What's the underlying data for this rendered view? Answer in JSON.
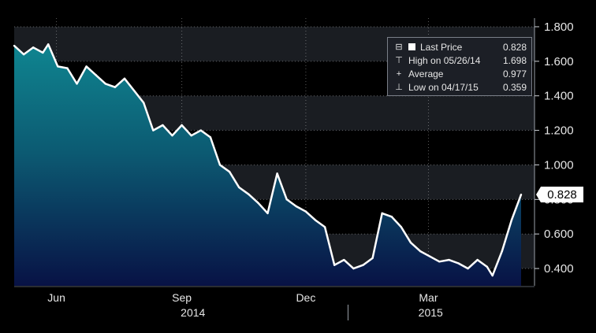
{
  "chart_data": {
    "type": "area",
    "x": [
      "2014-05-01",
      "2014-05-08",
      "2014-05-15",
      "2014-05-22",
      "2014-05-26",
      "2014-06-02",
      "2014-06-09",
      "2014-06-16",
      "2014-06-23",
      "2014-06-30",
      "2014-07-07",
      "2014-07-14",
      "2014-07-21",
      "2014-07-28",
      "2014-08-04",
      "2014-08-11",
      "2014-08-18",
      "2014-08-25",
      "2014-09-01",
      "2014-09-08",
      "2014-09-15",
      "2014-09-22",
      "2014-09-29",
      "2014-10-06",
      "2014-10-13",
      "2014-10-20",
      "2014-10-27",
      "2014-11-03",
      "2014-11-10",
      "2014-11-17",
      "2014-11-24",
      "2014-12-01",
      "2014-12-08",
      "2014-12-15",
      "2014-12-22",
      "2014-12-29",
      "2015-01-05",
      "2015-01-12",
      "2015-01-19",
      "2015-01-26",
      "2015-02-02",
      "2015-02-09",
      "2015-02-16",
      "2015-02-23",
      "2015-03-02",
      "2015-03-09",
      "2015-03-16",
      "2015-03-23",
      "2015-03-30",
      "2015-04-06",
      "2015-04-13",
      "2015-04-17",
      "2015-04-24",
      "2015-05-01",
      "2015-05-08"
    ],
    "values": [
      1.69,
      1.64,
      1.68,
      1.65,
      1.698,
      1.57,
      1.56,
      1.47,
      1.57,
      1.52,
      1.47,
      1.45,
      1.5,
      1.43,
      1.36,
      1.2,
      1.23,
      1.17,
      1.23,
      1.17,
      1.2,
      1.16,
      1.0,
      0.96,
      0.87,
      0.83,
      0.78,
      0.72,
      0.95,
      0.8,
      0.76,
      0.73,
      0.68,
      0.64,
      0.42,
      0.45,
      0.4,
      0.42,
      0.46,
      0.72,
      0.7,
      0.64,
      0.55,
      0.5,
      0.47,
      0.44,
      0.45,
      0.43,
      0.4,
      0.45,
      0.41,
      0.359,
      0.5,
      0.68,
      0.828
    ],
    "ylim": [
      0.3,
      1.85
    ],
    "yticks": [
      "1.800",
      "1.600",
      "1.400",
      "1.200",
      "1.000",
      "0.800",
      "0.600",
      "0.400"
    ],
    "ytick_values": [
      1.8,
      1.6,
      1.4,
      1.2,
      1.0,
      0.8,
      0.6,
      0.4
    ],
    "xticks": [
      {
        "label": "Jun",
        "date": "2014-06-01"
      },
      {
        "label": "Sep",
        "date": "2014-09-01"
      },
      {
        "label": "Dec",
        "date": "2014-12-01"
      },
      {
        "label": "Mar",
        "date": "2015-03-01"
      }
    ],
    "year_labels": [
      {
        "label": "2014"
      },
      {
        "label": "2015"
      }
    ],
    "last_value_label": "0.828",
    "grid": true,
    "legend_position": "top-right",
    "colors": {
      "line": "#ffffff",
      "area_top": "#0d7a88",
      "area_bottom": "#0a1445",
      "background": "#000000",
      "grid": "#ffffff"
    }
  },
  "legend": {
    "items": [
      {
        "label": "Last Price",
        "value": "0.828",
        "icon": "filled-square"
      },
      {
        "label": "High on 05/26/14",
        "value": "1.698",
        "icon": "high-marker"
      },
      {
        "label": "Average",
        "value": "0.977",
        "icon": "average-marker"
      },
      {
        "label": "Low on 04/17/15",
        "value": "0.359",
        "icon": "low-marker"
      }
    ]
  }
}
